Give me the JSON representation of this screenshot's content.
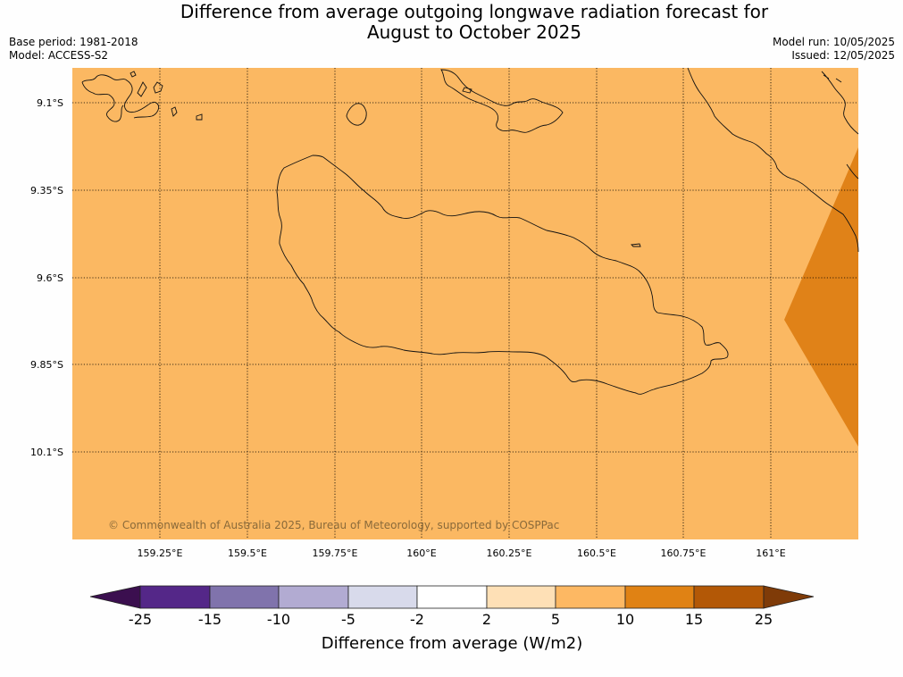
{
  "title": {
    "line1": "Difference from average outgoing longwave radiation forecast for",
    "line2": "August to October 2025"
  },
  "meta": {
    "base_period": "Base period: 1981-2018",
    "model": "Model: ACCESS-S2",
    "model_run": "Model run: 10/05/2025",
    "issued": "Issued: 12/05/2025"
  },
  "map": {
    "background_color": "#fbb862",
    "highlight_color": "#e08218",
    "lat_labels": [
      "9.1°S",
      "9.35°S",
      "9.6°S",
      "9.85°S",
      "10.1°S"
    ],
    "lon_labels": [
      "159.25°E",
      "159.5°E",
      "159.75°E",
      "160°E",
      "160.25°E",
      "160.5°E",
      "160.75°E",
      "161°E"
    ],
    "copyright": "© Commonwealth of Australia 2025, Bureau of Meteorology, supported by COSPPac"
  },
  "colorbar": {
    "title": "Difference from average (W/m2)",
    "tick_labels": [
      "-25",
      "-15",
      "-10",
      "-5",
      "-2",
      "2",
      "5",
      "10",
      "15",
      "25"
    ],
    "colors": [
      "#3b0f4f",
      "#542788",
      "#8073ac",
      "#b2abd2",
      "#d8daeb",
      "#ffffff",
      "#fee0b6",
      "#fdb863",
      "#e08214",
      "#b35806",
      "#7f3b08"
    ]
  }
}
